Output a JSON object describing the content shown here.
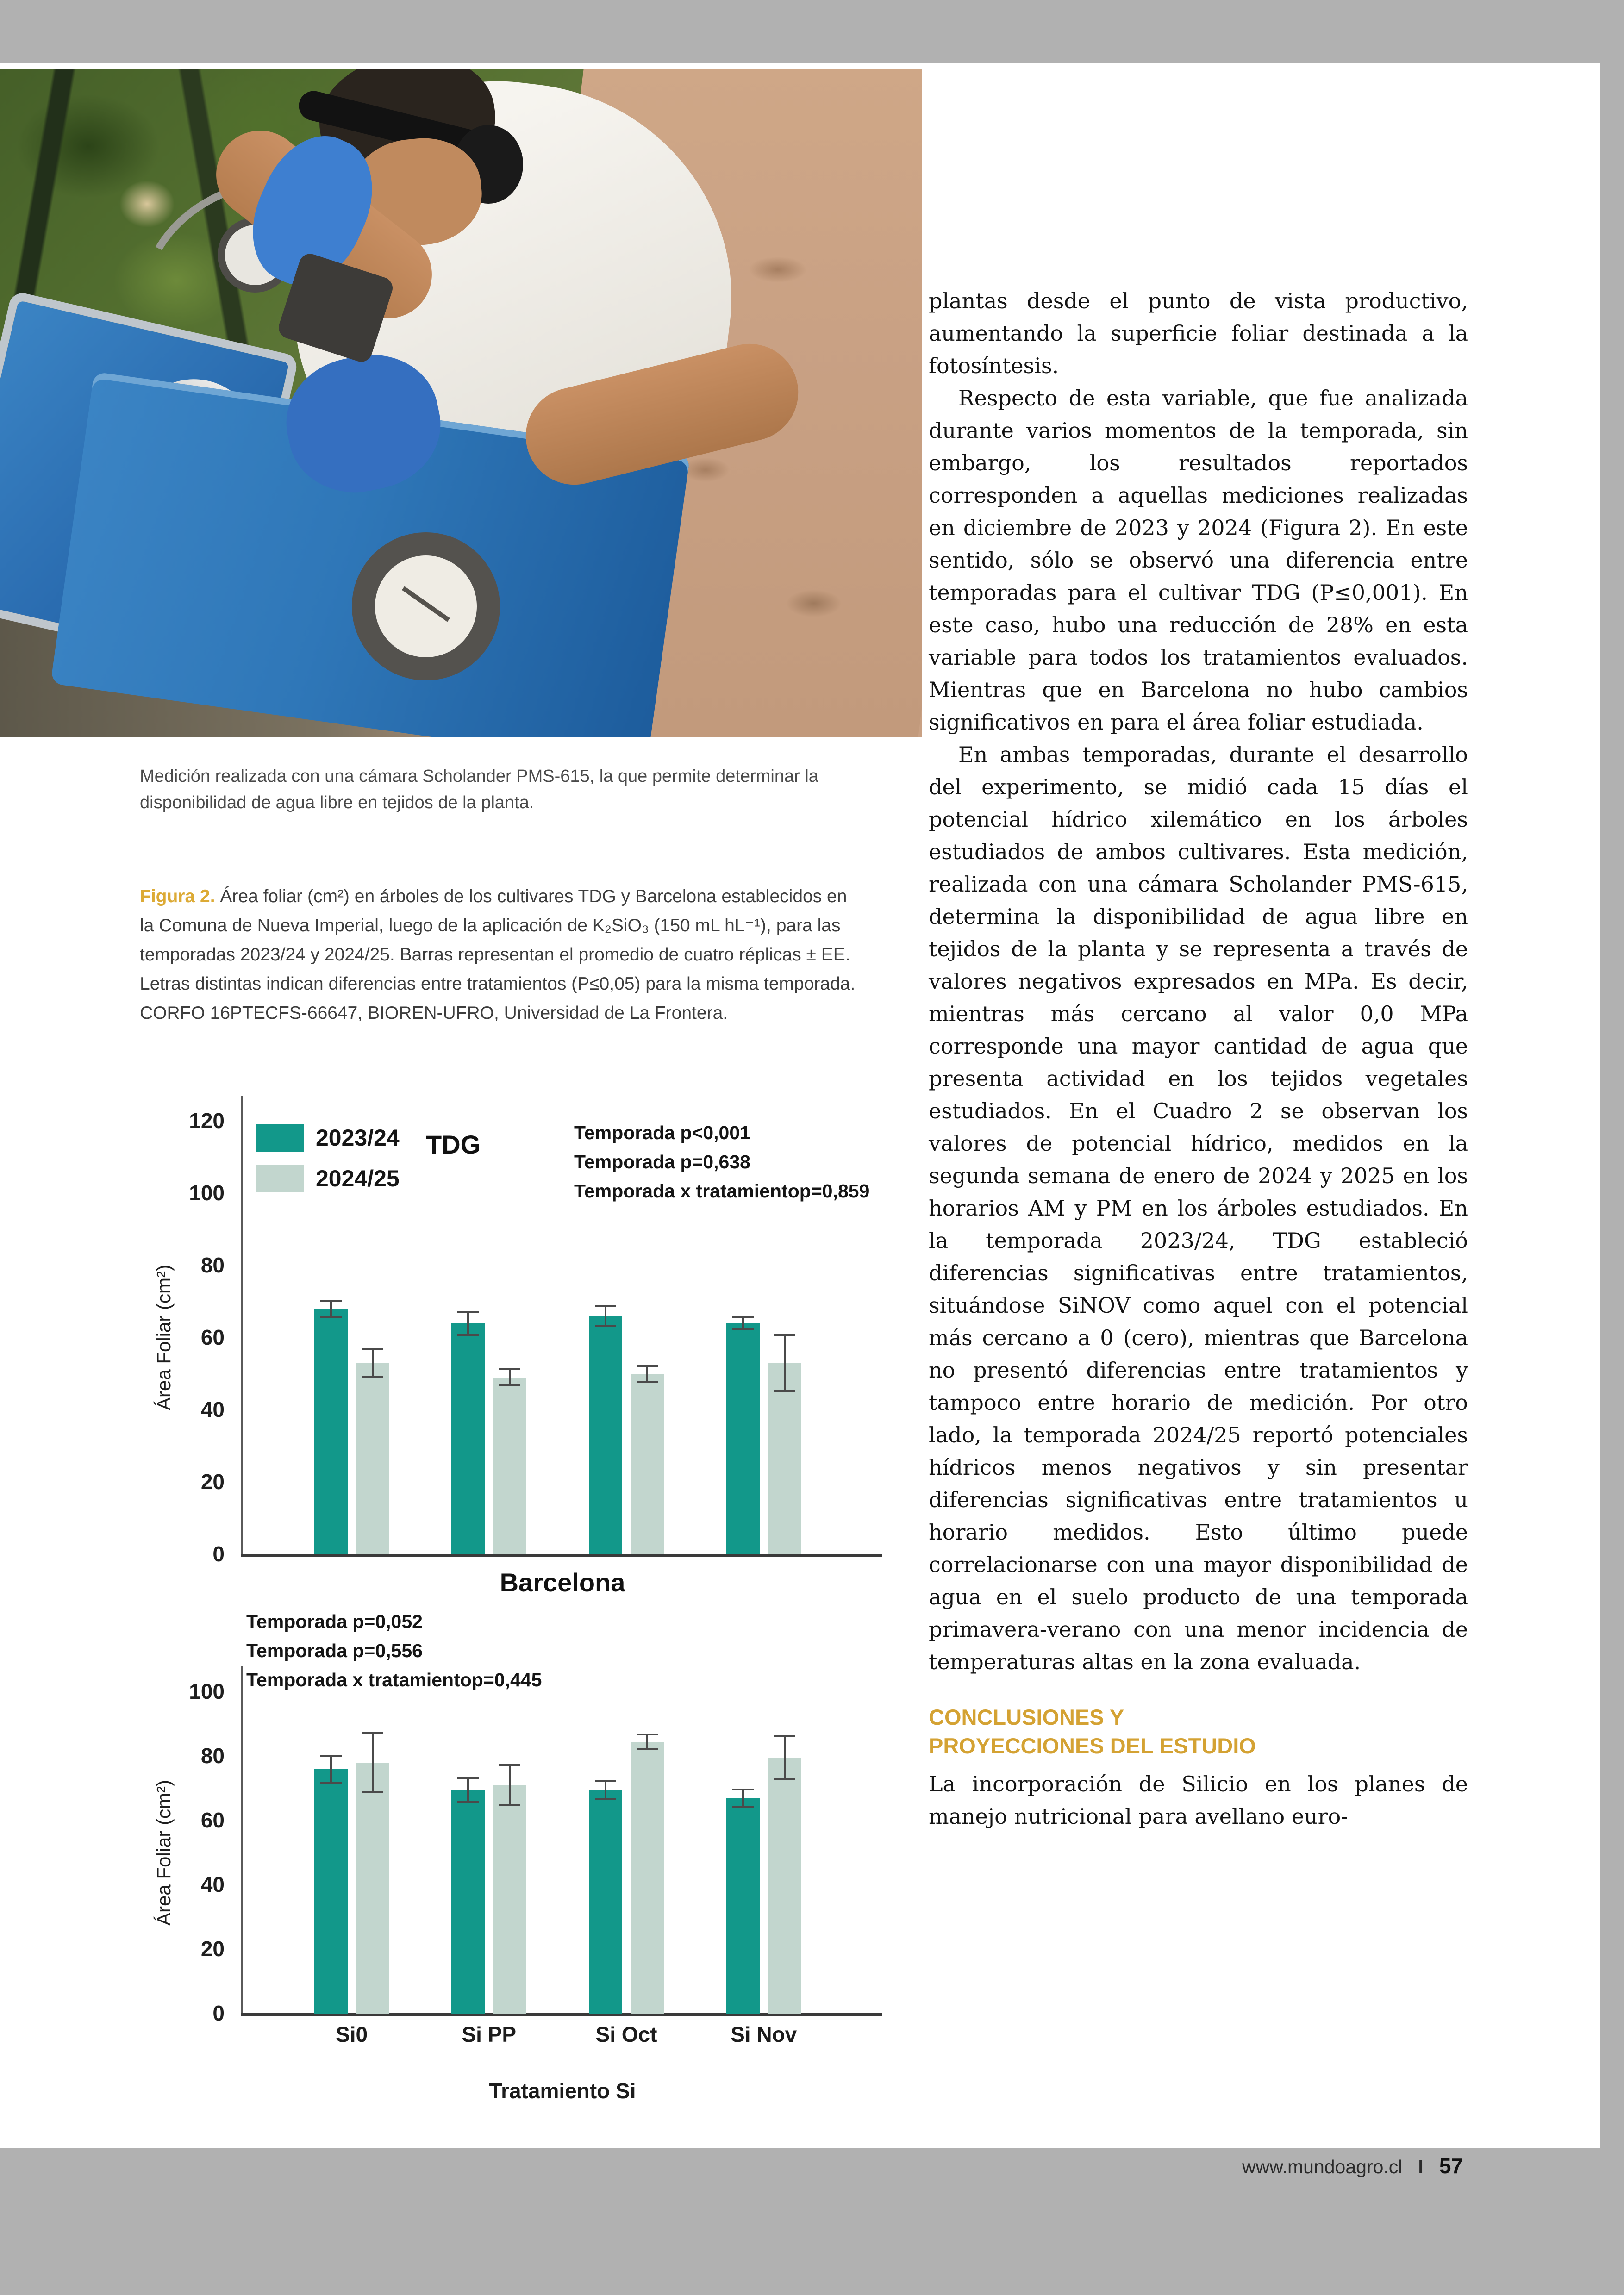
{
  "page": {
    "photo_caption": "Medición realizada con una cámara Scholander PMS-615, la que permite determinar la disponibilidad de agua libre en tejidos de la planta.",
    "figure_caption": {
      "label": "Figura 2.",
      "text": " Área foliar (cm²) en árboles de los cultivares TDG y Barcelona establecidos en la Comuna de Nueva Imperial, luego de la aplicación de K₂SiO₃ (150 mL hL⁻¹), para las temporadas 2023/24 y 2024/25. Barras representan el promedio de cuatro réplicas ± EE. Letras distintas indican diferencias entre tratamientos (P≤0,05) para la misma temporada. CORFO 16PTECFS-66647, BIOREN-UFRO, Universidad de La Frontera."
    },
    "article": {
      "paragraphs": [
        "plantas desde el punto de vista productivo, aumentando la superficie foliar destinada a la fotosíntesis.",
        "Respecto de esta variable, que fue analizada durante varios momentos de la temporada, sin embargo, los resultados reportados corresponden a aquellas mediciones realizadas en diciembre de 2023 y 2024 (Figura 2). En este sentido, sólo se observó una diferencia entre temporadas para el cultivar TDG (P≤0,001). En este caso, hubo una reducción de 28% en esta variable para todos los tratamientos evaluados. Mientras que en Barcelona no hubo cambios significativos en para el área foliar estudiada.",
        "En ambas temporadas, durante el desarrollo del experimento, se midió cada 15 días el potencial hídrico xilemático en los árboles estudiados de ambos cultivares. Esta medición, realizada con una cámara Scholander PMS-615, determina la disponibilidad de agua libre en tejidos de la planta y se representa a través de valores negativos expresados en MPa. Es decir, mientras más cercano al valor 0,0 MPa corresponde una mayor cantidad de agua que presenta actividad en los tejidos vegetales estudiados. En el Cuadro 2 se observan los valores de potencial hídrico, medidos en la segunda semana de enero de 2024 y 2025 en los horarios AM y PM en los árboles estudiados. En la temporada 2023/24, TDG estableció diferencias significativas entre tratamientos, situándose SiNOV como aquel con el potencial más cercano a 0 (cero), mientras que Barcelona no presentó diferencias entre tratamientos y tampoco entre horario de medición. Por otro lado, la temporada 2024/25 reportó potenciales hídricos menos negativos y sin presentar diferencias significativas entre tratamientos u horario medidos. Esto último puede correlacionarse con una mayor disponibilidad de agua en el suelo producto de una temporada primavera-verano con una menor incidencia de temperaturas altas en la zona evaluada.",
        "La incorporación de Silicio en los planes de manejo nutricional para avellano euro-"
      ],
      "heading_lines": [
        "CONCLUSIONES Y",
        "PROYECCIONES DEL ESTUDIO"
      ]
    },
    "footer": {
      "site": "www.mundoagro.cl",
      "separator": "I",
      "page_number": "57"
    }
  },
  "colors": {
    "accent_gold": "#d4a233",
    "series_2023_24": "#12988a",
    "series_2024_25": "#c2d6ce",
    "page_margin_gray": "#b1b1b1"
  },
  "chart_data": [
    {
      "type": "bar",
      "title": "TDG",
      "ylabel": "Área Foliar (cm²)",
      "xlabel": "",
      "categories": [
        "Si0",
        "Si PP",
        "Si Oct",
        "Si Nov"
      ],
      "series": [
        {
          "name": "2023/24",
          "color": "#12988a",
          "values": [
            68,
            64,
            66,
            64
          ],
          "errors": [
            2.5,
            3.5,
            3,
            2
          ]
        },
        {
          "name": "2024/25",
          "color": "#c2d6ce",
          "values": [
            53,
            49,
            50,
            53
          ],
          "errors": [
            4,
            2.5,
            2.5,
            8
          ]
        }
      ],
      "ylim": [
        0,
        120
      ],
      "yticks": [
        0,
        20,
        40,
        60,
        80,
        100,
        120
      ],
      "stats": [
        "Temporada p<0,001",
        "Temporada p=0,638",
        "Temporada x tratamientop=0,859"
      ],
      "legend_position": "top-left",
      "grid": false,
      "show_x_labels": false,
      "show_legend": true
    },
    {
      "type": "bar",
      "title": "Barcelona",
      "ylabel": "Área Foliar (cm²)",
      "xlabel": "Tratamiento Si",
      "categories": [
        "Si0",
        "Si PP",
        "Si Oct",
        "Si Nov"
      ],
      "series": [
        {
          "name": "2023/24",
          "color": "#12988a",
          "values": [
            76,
            69.5,
            69.5,
            67
          ],
          "errors": [
            4.5,
            4,
            3,
            3
          ]
        },
        {
          "name": "2024/25",
          "color": "#c2d6ce",
          "values": [
            78,
            71,
            84.5,
            79.5
          ],
          "errors": [
            9.5,
            6.5,
            2.5,
            7
          ]
        }
      ],
      "ylim": [
        0,
        100
      ],
      "yticks": [
        0,
        20,
        40,
        60,
        80,
        100
      ],
      "stats": [
        "Temporada p=0,052",
        "Temporada p=0,556",
        "Temporada x tratamientop=0,445"
      ],
      "legend_position": "none",
      "grid": false,
      "show_x_labels": true,
      "show_legend": false
    }
  ]
}
